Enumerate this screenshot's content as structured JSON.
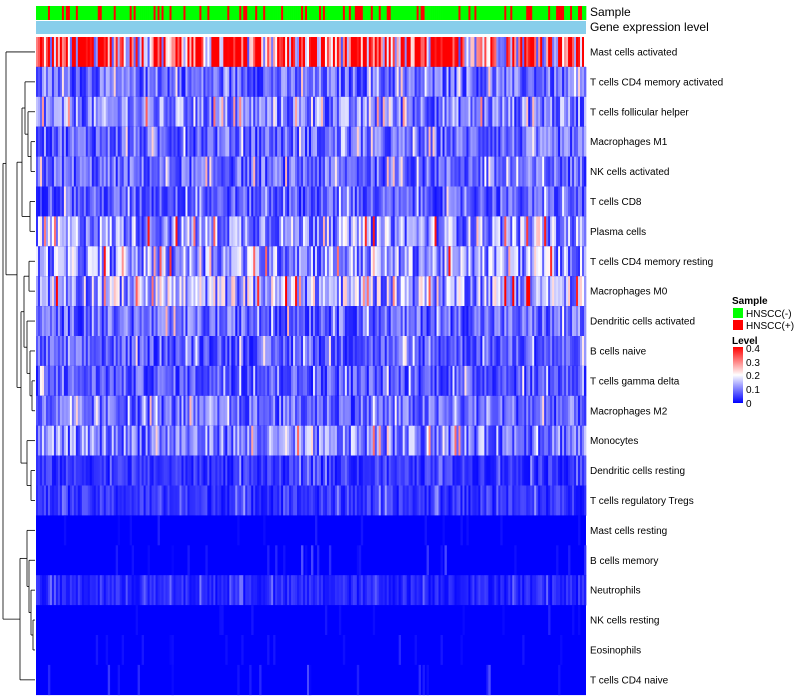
{
  "chart_data": {
    "type": "heatmap",
    "annotation_rows": [
      "Sample",
      "Gene expression level"
    ],
    "rows": [
      "Mast cells activated",
      "T cells CD4 memory activated",
      "T cells follicular helper",
      "Macrophages M1",
      "NK cells activated",
      "T cells CD8",
      "Plasma cells",
      "T cells CD4 memory resting",
      "Macrophages M0",
      "Dendritic cells activated",
      "B cells naive",
      "T cells gamma delta",
      "Macrophages M2",
      "Monocytes",
      "Dendritic cells resting",
      "T cells regulatory  Tregs",
      "Mast cells resting",
      "B cells memory",
      "Neutrophils",
      "NK cells resting",
      "Eosinophils",
      "T cells CD4 naive"
    ],
    "row_mean_level": [
      0.3,
      0.08,
      0.1,
      0.08,
      0.08,
      0.07,
      0.12,
      0.12,
      0.14,
      0.08,
      0.07,
      0.07,
      0.08,
      0.1,
      0.04,
      0.04,
      0.01,
      0.02,
      0.03,
      0.01,
      0.01,
      0.02
    ],
    "num_samples": 276,
    "sample_groups": [
      "HNSCC(-)",
      "HNSCC(+)"
    ],
    "sample_group_fraction_positive": 0.25,
    "legend": {
      "sample_title": "Sample",
      "level_title": "Level",
      "level_ticks": [
        "0.4",
        "0.3",
        "0.2",
        "0.1",
        "0"
      ],
      "level_range": [
        0,
        0.4
      ]
    },
    "colors": {
      "hnscc_neg": "#00ff00",
      "hnscc_pos": "#ff0000",
      "gene_expression_bar": "#87ceeb",
      "low": "#0000ff",
      "mid": "#ffffff",
      "high": "#ff0000"
    }
  }
}
